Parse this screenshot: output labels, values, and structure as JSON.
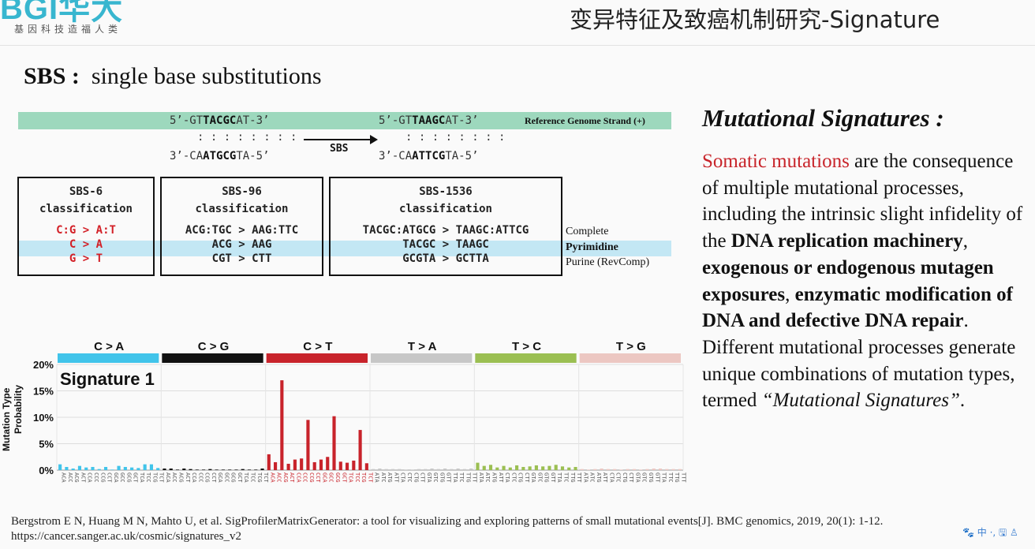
{
  "header": {
    "logo_text": "BGI华大",
    "logo_sub": "基因科技造福人类",
    "slide_title": "变异特征及致癌机制研究-Signature"
  },
  "subtitle": {
    "bold": "SBS :",
    "rest": "single base substitutions"
  },
  "figure": {
    "ref_strand_before_top": [
      "5’-GT",
      "TACGC",
      "AT-3’"
    ],
    "ref_strand_after_top": [
      "5’-GT",
      "TA",
      "A",
      "GC",
      "AT-3’"
    ],
    "dots": ": : : : : : : :",
    "bottom_before": [
      "3’-CA",
      "ATGCG",
      "TA-5’"
    ],
    "bottom_after": [
      "3’-CA",
      "AT",
      "T",
      "CG",
      "TA-5’"
    ],
    "sbs_label": "SBS",
    "ref_label": "Reference Genome Strand (+)",
    "boxes": [
      {
        "title1": "SBS-6",
        "title2": "classification",
        "rows": [
          [
            "C:G > A:T"
          ],
          [
            "C > A"
          ],
          [
            "G > T"
          ]
        ]
      },
      {
        "title1": "SBS-96",
        "title2": "classification",
        "rows": [
          [
            "ACG:TGC > AAG:TTC"
          ],
          [
            "ACG > AAG"
          ],
          [
            "CGT > CTT"
          ]
        ]
      },
      {
        "title1": "SBS-1536",
        "title2": "classification",
        "rows": [
          [
            "TACGC:ATGCG > TAAGC:ATTCG"
          ],
          [
            "TACGC > TAAGC"
          ],
          [
            "GCGTA > GCTTA"
          ]
        ]
      }
    ],
    "side_labels": {
      "complete": "Complete",
      "pyrimidine": "Pyrimidine",
      "purine": "Purine (RevComp)"
    }
  },
  "chart_data": {
    "type": "bar",
    "title": "Signature 1",
    "ylabel": "Mutation Type Probability",
    "ylim": [
      0,
      20
    ],
    "yticks": [
      "0%",
      "5%",
      "10%",
      "15%",
      "20%"
    ],
    "groups": [
      {
        "name": "C > A",
        "color": "#41c4ea"
      },
      {
        "name": "C > G",
        "color": "#111111"
      },
      {
        "name": "C > T",
        "color": "#c8232b"
      },
      {
        "name": "T > A",
        "color": "#c7c7c7"
      },
      {
        "name": "T > C",
        "color": "#9bbf52"
      },
      {
        "name": "T > G",
        "color": "#ecc7c2"
      }
    ],
    "values": [
      1.1,
      0.6,
      0.3,
      0.8,
      0.5,
      0.6,
      0.2,
      0.6,
      0.1,
      0.8,
      0.6,
      0.5,
      0.4,
      1.1,
      1.1,
      0.4,
      0.3,
      0.3,
      0.1,
      0.3,
      0.2,
      0.1,
      0.1,
      0.2,
      0.1,
      0.1,
      0.1,
      0.1,
      0.2,
      0.1,
      0.1,
      0.3,
      3.0,
      1.5,
      17.0,
      1.2,
      2.0,
      2.2,
      9.5,
      1.5,
      2.0,
      2.5,
      10.2,
      1.6,
      1.4,
      1.8,
      7.6,
      1.3,
      0.2,
      0.3,
      0.2,
      0.2,
      0.2,
      0.1,
      0.1,
      0.2,
      0.2,
      0.3,
      0.2,
      0.3,
      0.2,
      0.3,
      0.2,
      0.3,
      1.4,
      0.8,
      1.0,
      0.5,
      0.8,
      0.5,
      0.9,
      0.6,
      0.7,
      0.9,
      0.7,
      0.8,
      1.0,
      0.7,
      0.5,
      0.6,
      0.2,
      0.1,
      0.2,
      0.3,
      0.2,
      0.2,
      0.1,
      0.2,
      0.2,
      0.1,
      0.2,
      0.3,
      0.3,
      0.2,
      0.2,
      0.2
    ],
    "context_labels_note": "trinucleotide contexts repeat for each group",
    "contexts_CX": [
      "ACA",
      "ACC",
      "ACG",
      "ACT",
      "CCA",
      "CCC",
      "CCG",
      "CCT",
      "GCA",
      "GCC",
      "GCG",
      "GCT",
      "TCA",
      "TCC",
      "TCG",
      "TCT"
    ],
    "contexts_TX": [
      "ATA",
      "ATC",
      "ATG",
      "ATT",
      "CTA",
      "CTC",
      "CTG",
      "CTT",
      "GTA",
      "GTC",
      "GTG",
      "GTT",
      "TTA",
      "TTC",
      "TTG",
      "TTT"
    ]
  },
  "side_panel": {
    "title": "Mutational Signatures :",
    "p_red": "Somatic mutations",
    "p1": " are the consequence of multiple mutational processes, including the intrinsic slight infidelity of the ",
    "b1": "DNA replication machinery",
    "p2": ", ",
    "b2": "exogenous or endogenous mutagen exposures",
    "p3": ", ",
    "b3": "enzymatic modification of DNA and defective DNA repair",
    "p4": ". Different mutational processes generate unique combinations of mutation types, termed ",
    "i1": "“Mutational Signatures”",
    "p5": "."
  },
  "reference": {
    "line1": "Bergstrom E N, Huang M N, Mahto U, et al. SigProfilerMatrixGenerator: a tool for visualizing and exploring patterns of small mutational events[J]. BMC genomics, 2019, 20(1): 1-12.",
    "line2": "https://cancer.sanger.ac.uk/cosmic/signatures_v2"
  },
  "tray": {
    "text": "🐾 中 ·, 🖫 ♙"
  }
}
